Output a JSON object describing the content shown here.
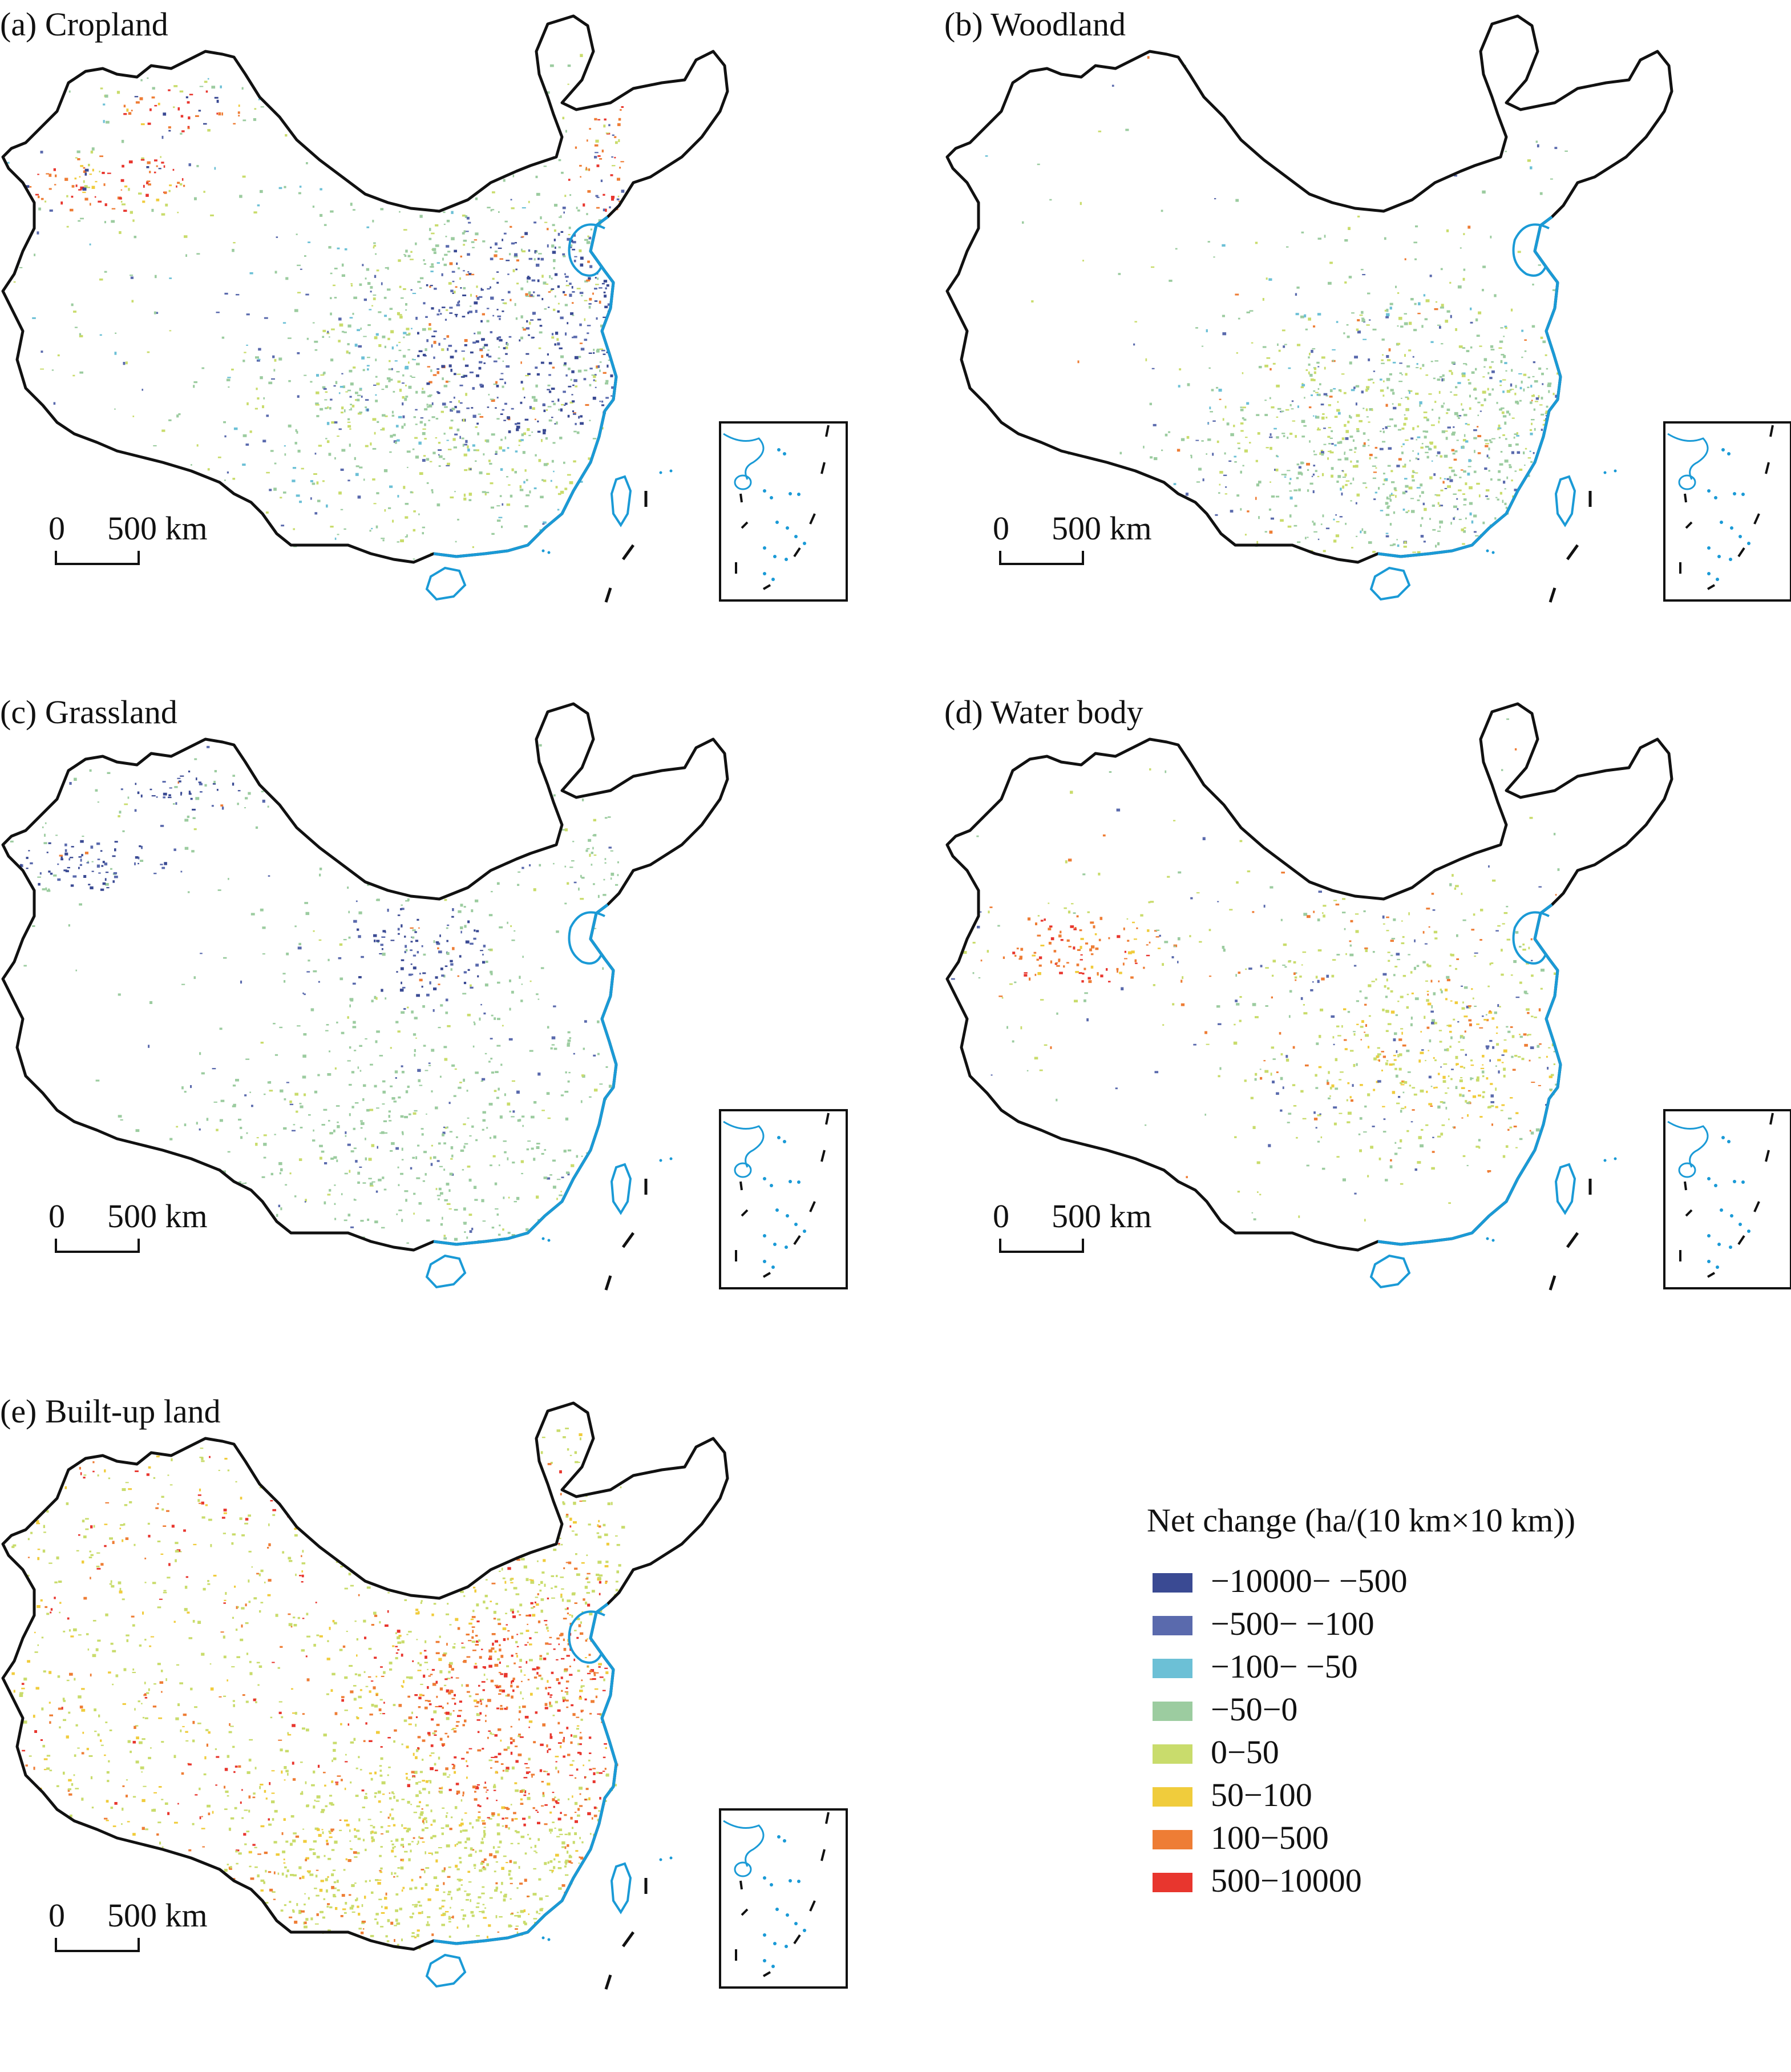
{
  "panels": [
    {
      "id": "a",
      "title": "(a) Cropland",
      "theme": "cropland"
    },
    {
      "id": "b",
      "title": "(b) Woodland",
      "theme": "woodland"
    },
    {
      "id": "c",
      "title": "(c) Grassland",
      "theme": "grassland"
    },
    {
      "id": "d",
      "title": "(d) Water body",
      "theme": "water"
    },
    {
      "id": "e",
      "title": "(e) Built-up land",
      "theme": "builtup"
    }
  ],
  "scale_bar": {
    "zero": "0",
    "distance": "500 km"
  },
  "legend": {
    "title": "Net change (ha/(10 km×10 km))",
    "items": [
      {
        "label": "−10000− −500",
        "color": "#3a4a93"
      },
      {
        "label": "−500− −100",
        "color": "#5a6aad"
      },
      {
        "label": "−100− −50",
        "color": "#6cc0d6"
      },
      {
        "label": "−50−0",
        "color": "#9ccca0"
      },
      {
        "label": "0−50",
        "color": "#c9dc6c"
      },
      {
        "label": "50−100",
        "color": "#f0cc3c"
      },
      {
        "label": "100−500",
        "color": "#ee7d35"
      },
      {
        "label": "500−10000",
        "color": "#e8362e"
      }
    ]
  },
  "colors": {
    "boundary": "#111111",
    "coast": "#1a9ad6",
    "inset_frame": "#111111"
  }
}
